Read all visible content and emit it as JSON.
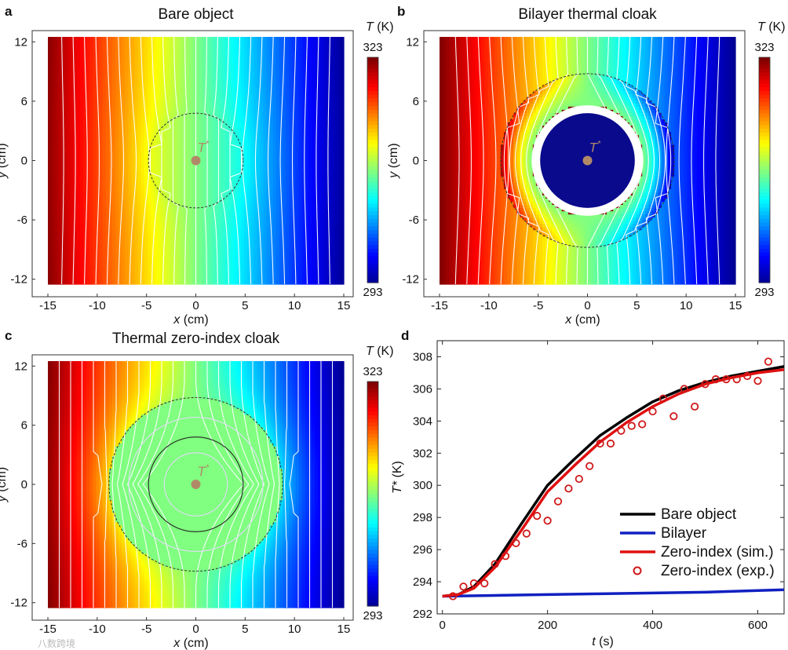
{
  "watermark": "八数跨境",
  "colors": {
    "jet": [
      "#00008f",
      "#0000ff",
      "#0080ff",
      "#00ffff",
      "#80ff80",
      "#ffff00",
      "#ff8000",
      "#ff0000",
      "#800000"
    ],
    "isotherm": "#ffffff",
    "probe": "#b08a68",
    "bare": "#000000",
    "bilayer": "#1020c0",
    "zero_sim": "#e01010",
    "zero_exp": "#d01818"
  },
  "chart_data": [
    {
      "id": "a",
      "type": "heatmap",
      "panel_label": "a",
      "title": "Bare object",
      "xlabel_var": "x",
      "xlabel_unit": " (cm)",
      "ylabel_var": "y",
      "ylabel_unit": " (cm)",
      "xlim": [
        -15,
        15
      ],
      "ylim": [
        -12.5,
        12.5
      ],
      "xticks": [
        "-15",
        "-10",
        "-5",
        "0",
        "5",
        "10",
        "15"
      ],
      "yticks": [
        "12",
        "6",
        "0",
        "-6",
        "-12"
      ],
      "field": "bare",
      "object_radius_cm": 4.8,
      "probe_label": "T*",
      "probe_position_cm": [
        0,
        0
      ],
      "colorbar": {
        "label_var": "T",
        "label_unit": " (K)",
        "max": "323",
        "min": "293"
      }
    },
    {
      "id": "b",
      "type": "heatmap",
      "panel_label": "b",
      "title": "Bilayer thermal cloak",
      "xlabel_var": "x",
      "xlabel_unit": " (cm)",
      "ylabel_var": "y",
      "ylabel_unit": " (cm)",
      "xlim": [
        -15,
        15
      ],
      "ylim": [
        -12.5,
        12.5
      ],
      "xticks": [
        "-15",
        "-10",
        "-5",
        "0",
        "5",
        "10",
        "15"
      ],
      "yticks": [
        "12",
        "6",
        "0",
        "-6",
        "-12"
      ],
      "field": "bilayer",
      "object_radius_cm": 4.8,
      "cloak_inner_radius_cm": 5.6,
      "cloak_outer_radius_cm": 8.8,
      "probe_label": "T*",
      "probe_position_cm": [
        0,
        0
      ],
      "colorbar": {
        "label_var": "T",
        "label_unit": " (K)",
        "max": "323",
        "min": "293"
      }
    },
    {
      "id": "c",
      "type": "heatmap",
      "panel_label": "c",
      "title": "Thermal zero-index cloak",
      "xlabel_var": "x",
      "xlabel_unit": " (cm)",
      "ylabel_var": "y",
      "ylabel_unit": " (cm)",
      "xlim": [
        -15,
        15
      ],
      "ylim": [
        -12.5,
        12.5
      ],
      "xticks": [
        "-15",
        "-10",
        "-5",
        "0",
        "5",
        "10",
        "15"
      ],
      "yticks": [
        "12",
        "6",
        "0",
        "-6",
        "-12"
      ],
      "field": "zero-index",
      "object_radius_cm": 4.8,
      "cloak_outer_radius_cm": 8.8,
      "probe_label": "T*",
      "probe_position_cm": [
        0,
        0
      ],
      "colorbar": {
        "label_var": "T",
        "label_unit": " (K)",
        "max": "323",
        "min": "293"
      }
    },
    {
      "id": "d",
      "type": "line",
      "panel_label": "d",
      "xlabel_var": "t",
      "xlabel_unit": " (s)",
      "ylabel_var": "T*",
      "ylabel_unit": " (K)",
      "xlim": [
        -10,
        650
      ],
      "ylim": [
        292,
        309
      ],
      "xticks": [
        0,
        200,
        400,
        600
      ],
      "yticks": [
        292,
        294,
        296,
        298,
        300,
        302,
        304,
        306,
        308
      ],
      "legend_position": "bottom-right",
      "series": [
        {
          "name": "Bare object",
          "kind": "line",
          "x": [
            0,
            30,
            60,
            100,
            150,
            200,
            250,
            300,
            350,
            400,
            450,
            500,
            550,
            600,
            650
          ],
          "y": [
            293.1,
            293.2,
            293.7,
            295.1,
            297.6,
            300.0,
            301.6,
            303.1,
            304.2,
            305.2,
            305.9,
            306.4,
            306.8,
            307.1,
            307.4
          ]
        },
        {
          "name": "Bilayer",
          "kind": "line",
          "x": [
            0,
            100,
            200,
            300,
            400,
            500,
            600,
            650
          ],
          "y": [
            293.1,
            293.15,
            293.2,
            293.25,
            293.3,
            293.35,
            293.45,
            293.5
          ]
        },
        {
          "name": "Zero-index (sim.)",
          "kind": "line",
          "x": [
            0,
            30,
            60,
            100,
            150,
            200,
            250,
            300,
            350,
            400,
            450,
            500,
            550,
            600,
            650
          ],
          "y": [
            293.1,
            293.2,
            293.6,
            294.9,
            297.2,
            299.6,
            301.2,
            302.7,
            303.9,
            304.9,
            305.7,
            306.3,
            306.7,
            307.0,
            307.2
          ]
        },
        {
          "name": "Zero-index (exp.)",
          "kind": "marker",
          "x": [
            20,
            40,
            60,
            80,
            100,
            120,
            140,
            160,
            180,
            200,
            220,
            240,
            260,
            280,
            300,
            320,
            340,
            360,
            380,
            400,
            420,
            440,
            460,
            480,
            500,
            520,
            540,
            560,
            580,
            600,
            620
          ],
          "y": [
            293.1,
            293.7,
            293.9,
            293.9,
            295.1,
            295.6,
            296.4,
            297.0,
            298.1,
            297.8,
            299.0,
            299.8,
            300.4,
            301.2,
            302.6,
            302.6,
            303.4,
            303.7,
            303.8,
            304.6,
            305.4,
            304.3,
            306.0,
            304.9,
            306.3,
            306.6,
            306.6,
            306.6,
            306.8,
            306.5,
            307.7
          ]
        }
      ]
    }
  ]
}
